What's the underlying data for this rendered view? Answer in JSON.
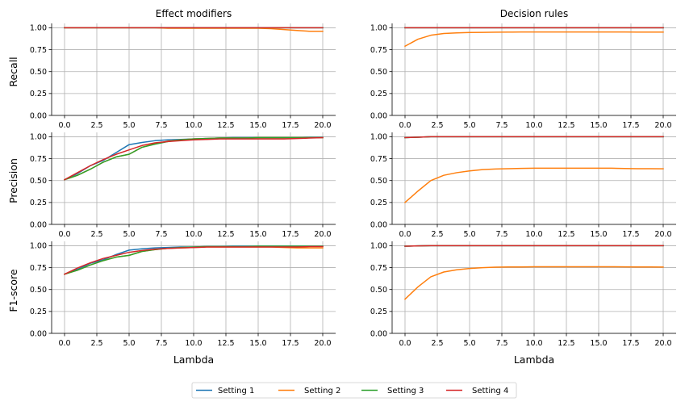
{
  "chart_data": {
    "type": "line",
    "column_titles": [
      "Effect modifiers",
      "Decision rules"
    ],
    "row_labels": [
      "Recall",
      "Precision",
      "F1-score"
    ],
    "xlabel": "Lambda",
    "xlim": [
      -1,
      21
    ],
    "ylim": [
      0,
      1.05
    ],
    "x_ticks": [
      "0.0",
      "2.5",
      "5.0",
      "7.5",
      "10.0",
      "12.5",
      "15.0",
      "17.5",
      "20.0"
    ],
    "x_tick_values": [
      0,
      2.5,
      5,
      7.5,
      10,
      12.5,
      15,
      17.5,
      20
    ],
    "y_ticks": [
      "0.00",
      "0.25",
      "0.50",
      "0.75",
      "1.00"
    ],
    "y_tick_values": [
      0,
      0.25,
      0.5,
      0.75,
      1.0
    ],
    "grid": true,
    "legend_placement": "bottom-center",
    "x": [
      0,
      1,
      2,
      3,
      4,
      5,
      6,
      7,
      8,
      9,
      10,
      11,
      12,
      13,
      14,
      15,
      16,
      17,
      18,
      19,
      20
    ],
    "series_meta": [
      {
        "name": "Setting 1",
        "color": "#1f77b4"
      },
      {
        "name": "Setting 2",
        "color": "#ff7f0e"
      },
      {
        "name": "Setting 3",
        "color": "#2ca02c"
      },
      {
        "name": "Setting 4",
        "color": "#d62728"
      }
    ],
    "panels": [
      {
        "row": 0,
        "col": 0,
        "series": [
          {
            "name": "Setting 1",
            "values": [
              1,
              1,
              1,
              1,
              1,
              1,
              1,
              1,
              1,
              1,
              1,
              1,
              1,
              1,
              1,
              1,
              1,
              1,
              1,
              1,
              1
            ]
          },
          {
            "name": "Setting 2",
            "values": [
              1,
              1,
              1,
              1,
              1,
              1,
              1,
              1,
              0.995,
              0.995,
              0.995,
              0.995,
              0.995,
              0.995,
              0.995,
              0.995,
              0.99,
              0.98,
              0.97,
              0.96,
              0.96
            ]
          },
          {
            "name": "Setting 3",
            "values": [
              1,
              1,
              1,
              1,
              1,
              1,
              1,
              1,
              1,
              1,
              1,
              1,
              1,
              1,
              1,
              1,
              1,
              1,
              1,
              1,
              1
            ]
          },
          {
            "name": "Setting 4",
            "values": [
              1,
              1,
              1,
              1,
              1,
              1,
              1,
              1,
              1,
              1,
              1,
              1,
              1,
              1,
              1,
              1,
              1,
              1,
              1,
              1,
              1
            ]
          }
        ]
      },
      {
        "row": 0,
        "col": 1,
        "series": [
          {
            "name": "Setting 1",
            "values": [
              1,
              1,
              1,
              1,
              1,
              1,
              1,
              1,
              1,
              1,
              1,
              1,
              1,
              1,
              1,
              1,
              1,
              1,
              1,
              1,
              1
            ]
          },
          {
            "name": "Setting 2",
            "values": [
              0.79,
              0.87,
              0.915,
              0.935,
              0.942,
              0.946,
              0.948,
              0.95,
              0.951,
              0.952,
              0.952,
              0.952,
              0.952,
              0.952,
              0.952,
              0.952,
              0.952,
              0.952,
              0.951,
              0.951,
              0.951
            ]
          },
          {
            "name": "Setting 3",
            "values": [
              1,
              1,
              1,
              1,
              1,
              1,
              1,
              1,
              1,
              1,
              1,
              1,
              1,
              1,
              1,
              1,
              1,
              1,
              1,
              1,
              1
            ]
          },
          {
            "name": "Setting 4",
            "values": [
              1,
              1,
              1,
              1,
              1,
              1,
              1,
              1,
              1,
              1,
              1,
              1,
              1,
              1,
              1,
              1,
              1,
              1,
              1,
              1,
              1
            ]
          }
        ]
      },
      {
        "row": 1,
        "col": 0,
        "series": [
          {
            "name": "Setting 1",
            "values": [
              0.51,
              0.58,
              0.67,
              0.73,
              0.82,
              0.91,
              0.935,
              0.955,
              0.965,
              0.97,
              0.975,
              0.98,
              0.985,
              0.99,
              0.99,
              0.99,
              0.99,
              0.99,
              0.99,
              0.995,
              0.995
            ]
          },
          {
            "name": "Setting 2",
            "values": [
              0.51,
              0.56,
              0.63,
              0.71,
              0.77,
              0.8,
              0.88,
              0.92,
              0.95,
              0.965,
              0.975,
              0.98,
              0.985,
              0.985,
              0.985,
              0.99,
              0.99,
              0.99,
              0.99,
              0.99,
              0.99
            ]
          },
          {
            "name": "Setting 3",
            "values": [
              0.51,
              0.56,
              0.63,
              0.71,
              0.77,
              0.8,
              0.88,
              0.915,
              0.945,
              0.965,
              0.975,
              0.98,
              0.985,
              0.985,
              0.985,
              0.99,
              0.99,
              0.99,
              0.99,
              0.99,
              0.99
            ]
          },
          {
            "name": "Setting 4",
            "values": [
              0.51,
              0.59,
              0.67,
              0.74,
              0.8,
              0.85,
              0.9,
              0.93,
              0.945,
              0.955,
              0.965,
              0.97,
              0.975,
              0.975,
              0.975,
              0.975,
              0.975,
              0.975,
              0.98,
              0.985,
              0.99
            ]
          }
        ]
      },
      {
        "row": 1,
        "col": 1,
        "series": [
          {
            "name": "Setting 1",
            "values": [
              0.99,
              0.995,
              1,
              1,
              1,
              1,
              1,
              1,
              1,
              1,
              1,
              1,
              1,
              1,
              1,
              1,
              1,
              1,
              1,
              1,
              1
            ]
          },
          {
            "name": "Setting 2",
            "values": [
              0.25,
              0.38,
              0.5,
              0.56,
              0.59,
              0.61,
              0.625,
              0.632,
              0.636,
              0.639,
              0.641,
              0.641,
              0.641,
              0.641,
              0.641,
              0.641,
              0.641,
              0.638,
              0.636,
              0.636,
              0.635
            ]
          },
          {
            "name": "Setting 3",
            "values": [
              0.99,
              0.995,
              1,
              1,
              1,
              1,
              1,
              1,
              1,
              1,
              1,
              1,
              1,
              1,
              1,
              1,
              1,
              1,
              1,
              1,
              1
            ]
          },
          {
            "name": "Setting 4",
            "values": [
              0.99,
              0.995,
              1,
              1,
              1,
              1,
              1,
              1,
              1,
              1,
              1,
              1,
              1,
              1,
              1,
              1,
              1,
              1,
              1,
              1,
              1
            ]
          }
        ]
      },
      {
        "row": 2,
        "col": 0,
        "series": [
          {
            "name": "Setting 1",
            "values": [
              0.675,
              0.73,
              0.8,
              0.84,
              0.9,
              0.95,
              0.965,
              0.975,
              0.98,
              0.985,
              0.985,
              0.99,
              0.99,
              0.995,
              0.995,
              0.995,
              0.995,
              0.995,
              0.995,
              0.995,
              0.995
            ]
          },
          {
            "name": "Setting 2",
            "values": [
              0.675,
              0.72,
              0.78,
              0.83,
              0.87,
              0.89,
              0.935,
              0.955,
              0.97,
              0.975,
              0.98,
              0.985,
              0.985,
              0.985,
              0.985,
              0.985,
              0.985,
              0.98,
              0.975,
              0.975,
              0.975
            ]
          },
          {
            "name": "Setting 3",
            "values": [
              0.675,
              0.72,
              0.78,
              0.83,
              0.87,
              0.89,
              0.935,
              0.955,
              0.97,
              0.98,
              0.985,
              0.99,
              0.99,
              0.99,
              0.99,
              0.995,
              0.995,
              0.995,
              0.995,
              0.995,
              0.995
            ]
          },
          {
            "name": "Setting 4",
            "values": [
              0.675,
              0.745,
              0.805,
              0.855,
              0.89,
              0.925,
              0.945,
              0.96,
              0.97,
              0.975,
              0.98,
              0.985,
              0.985,
              0.985,
              0.985,
              0.985,
              0.985,
              0.985,
              0.985,
              0.99,
              0.99
            ]
          }
        ]
      },
      {
        "row": 2,
        "col": 1,
        "series": [
          {
            "name": "Setting 1",
            "values": [
              0.995,
              0.998,
              1,
              1,
              1,
              1,
              1,
              1,
              1,
              1,
              1,
              1,
              1,
              1,
              1,
              1,
              1,
              1,
              1,
              1,
              1
            ]
          },
          {
            "name": "Setting 2",
            "values": [
              0.39,
              0.53,
              0.645,
              0.7,
              0.725,
              0.74,
              0.75,
              0.755,
              0.757,
              0.758,
              0.76,
              0.76,
              0.76,
              0.76,
              0.76,
              0.76,
              0.76,
              0.759,
              0.758,
              0.757,
              0.756
            ]
          },
          {
            "name": "Setting 3",
            "values": [
              0.995,
              0.998,
              1,
              1,
              1,
              1,
              1,
              1,
              1,
              1,
              1,
              1,
              1,
              1,
              1,
              1,
              1,
              1,
              1,
              1,
              1
            ]
          },
          {
            "name": "Setting 4",
            "values": [
              0.995,
              0.998,
              1,
              1,
              1,
              1,
              1,
              1,
              1,
              1,
              1,
              1,
              1,
              1,
              1,
              1,
              1,
              1,
              1,
              1,
              1
            ]
          }
        ]
      }
    ]
  }
}
